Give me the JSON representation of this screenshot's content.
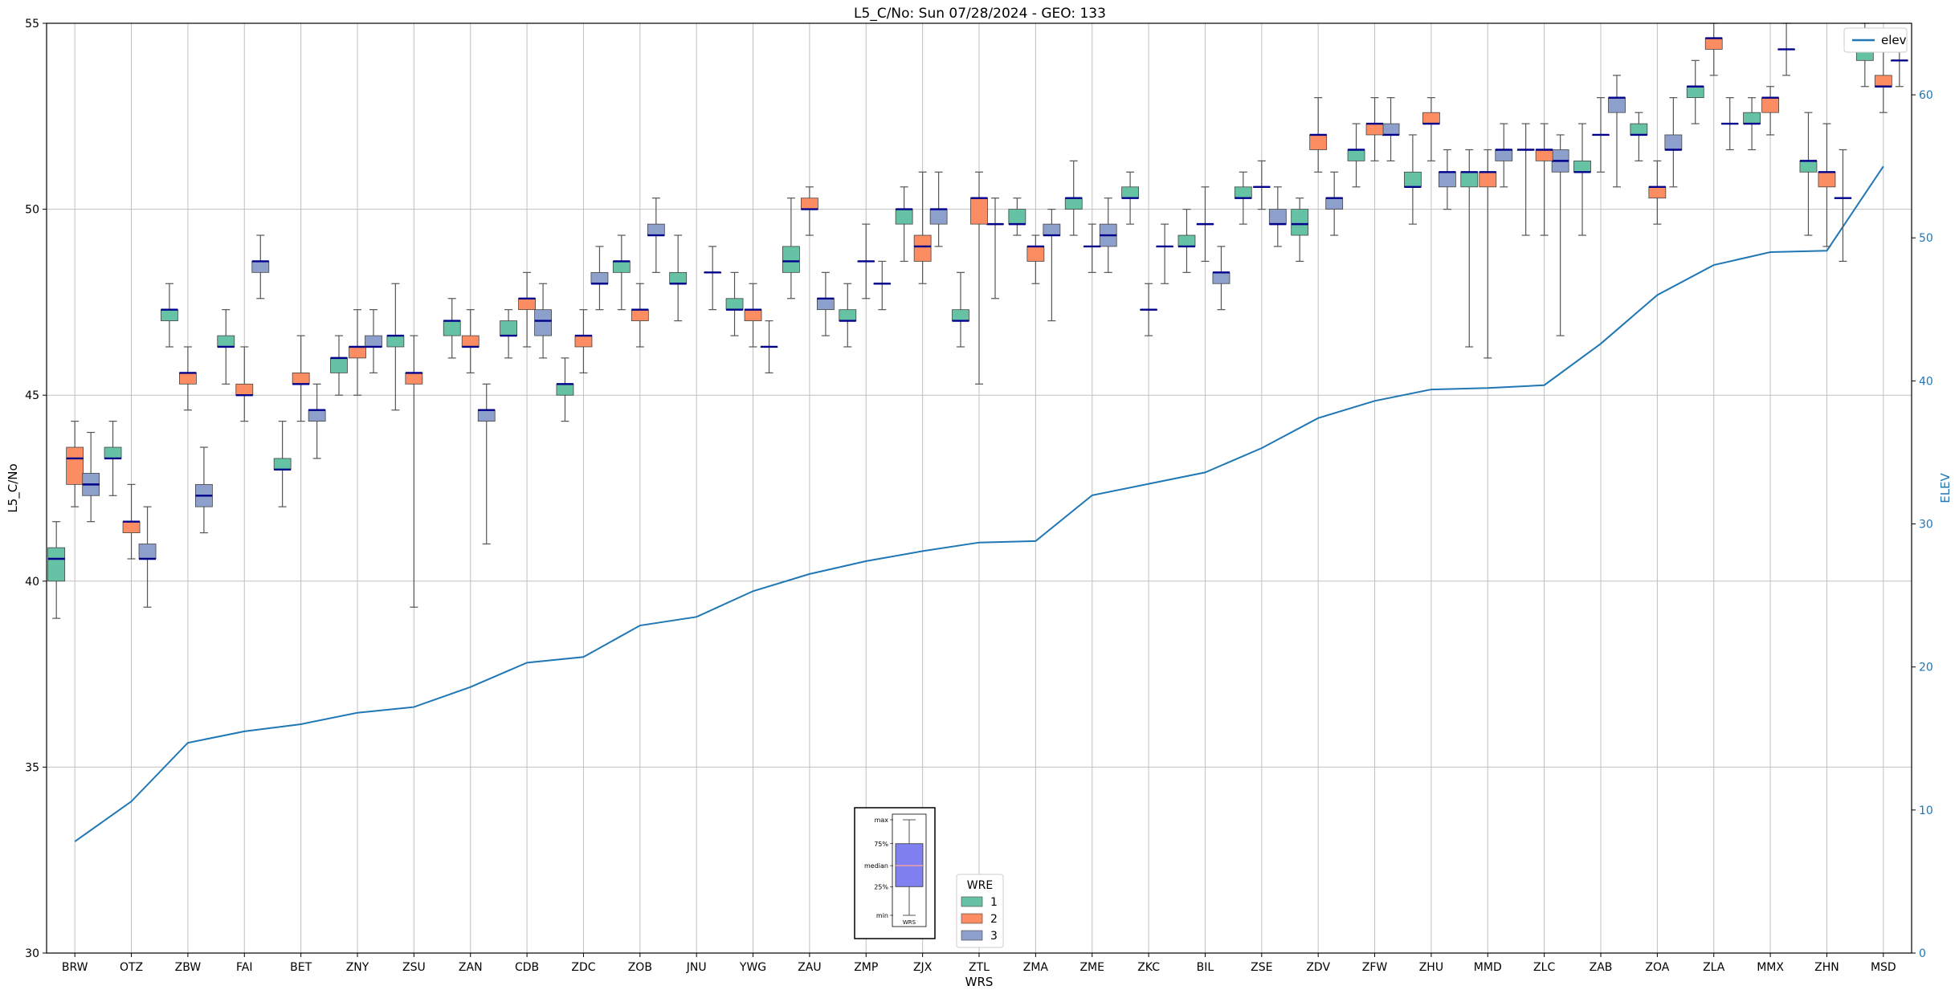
{
  "chart_data": {
    "type": "box",
    "title": "L5_C/No: Sun 07/28/2024 - GEO: 133",
    "xlabel": "WRS",
    "ylabel": "L5_C/No",
    "y2label": "ELEV",
    "ylim": [
      30,
      55
    ],
    "y2lim": [
      0,
      65
    ],
    "yticks": [
      30,
      35,
      40,
      45,
      50,
      55
    ],
    "y2ticks": [
      0,
      10,
      20,
      30,
      40,
      50,
      60
    ],
    "grid": true,
    "categories": [
      "BRW",
      "OTZ",
      "ZBW",
      "FAI",
      "BET",
      "ZNY",
      "ZSU",
      "ZAN",
      "CDB",
      "ZDC",
      "ZOB",
      "JNU",
      "YWG",
      "ZAU",
      "ZMP",
      "ZJX",
      "ZTL",
      "ZMA",
      "ZME",
      "ZKC",
      "BIL",
      "ZSE",
      "ZDV",
      "ZFW",
      "ZHU",
      "MMD",
      "ZLC",
      "ZAB",
      "ZOA",
      "ZLA",
      "MMX",
      "ZHN",
      "MSD"
    ],
    "colors": {
      "1": "#66c2a5",
      "2": "#fc8d62",
      "3": "#8da0cb",
      "median": "#00008b",
      "elev": "#1f77b4",
      "whisker": "#555555",
      "grid": "#c0c0c0"
    },
    "legend_title": "WRE",
    "legend_labels": [
      "1",
      "2",
      "3"
    ],
    "elev_legend_label": "elev",
    "legend_positions": {
      "wre": "bottom-center",
      "elev": "top-right"
    },
    "boxes": [
      {
        "station": "BRW",
        "wre": "1",
        "min": 39.0,
        "q1": 40.0,
        "median": 40.6,
        "q3": 40.9,
        "max": 41.6
      },
      {
        "station": "BRW",
        "wre": "2",
        "min": 42.0,
        "q1": 42.6,
        "median": 43.3,
        "q3": 43.6,
        "max": 44.3
      },
      {
        "station": "BRW",
        "wre": "3",
        "min": 41.6,
        "q1": 42.3,
        "median": 42.6,
        "q3": 42.9,
        "max": 44.0
      },
      {
        "station": "OTZ",
        "wre": "1",
        "min": 42.3,
        "q1": 43.3,
        "median": 43.3,
        "q3": 43.6,
        "max": 44.3
      },
      {
        "station": "OTZ",
        "wre": "2",
        "min": 40.6,
        "q1": 41.3,
        "median": 41.6,
        "q3": 41.6,
        "max": 42.6
      },
      {
        "station": "OTZ",
        "wre": "3",
        "min": 39.3,
        "q1": 40.6,
        "median": 40.6,
        "q3": 41.0,
        "max": 42.0
      },
      {
        "station": "ZBW",
        "wre": "1",
        "min": 46.3,
        "q1": 47.0,
        "median": 47.3,
        "q3": 47.3,
        "max": 48.0
      },
      {
        "station": "ZBW",
        "wre": "2",
        "min": 44.6,
        "q1": 45.3,
        "median": 45.6,
        "q3": 45.6,
        "max": 46.3
      },
      {
        "station": "ZBW",
        "wre": "3",
        "min": 41.3,
        "q1": 42.0,
        "median": 42.3,
        "q3": 42.6,
        "max": 43.6
      },
      {
        "station": "FAI",
        "wre": "1",
        "min": 45.3,
        "q1": 46.3,
        "median": 46.3,
        "q3": 46.6,
        "max": 47.3
      },
      {
        "station": "FAI",
        "wre": "2",
        "min": 44.3,
        "q1": 45.0,
        "median": 45.0,
        "q3": 45.3,
        "max": 46.3
      },
      {
        "station": "FAI",
        "wre": "3",
        "min": 47.6,
        "q1": 48.3,
        "median": 48.6,
        "q3": 48.6,
        "max": 49.3
      },
      {
        "station": "BET",
        "wre": "1",
        "min": 42.0,
        "q1": 43.0,
        "median": 43.0,
        "q3": 43.3,
        "max": 44.3
      },
      {
        "station": "BET",
        "wre": "2",
        "min": 44.3,
        "q1": 45.3,
        "median": 45.3,
        "q3": 45.6,
        "max": 46.6
      },
      {
        "station": "BET",
        "wre": "3",
        "min": 43.3,
        "q1": 44.3,
        "median": 44.6,
        "q3": 44.6,
        "max": 45.3
      },
      {
        "station": "ZNY",
        "wre": "1",
        "min": 45.0,
        "q1": 45.6,
        "median": 46.0,
        "q3": 46.0,
        "max": 46.6
      },
      {
        "station": "ZNY",
        "wre": "2",
        "min": 45.0,
        "q1": 46.0,
        "median": 46.3,
        "q3": 46.3,
        "max": 47.3
      },
      {
        "station": "ZNY",
        "wre": "3",
        "min": 45.6,
        "q1": 46.3,
        "median": 46.3,
        "q3": 46.6,
        "max": 47.3
      },
      {
        "station": "ZSU",
        "wre": "1",
        "min": 44.6,
        "q1": 46.3,
        "median": 46.6,
        "q3": 46.6,
        "max": 48.0
      },
      {
        "station": "ZSU",
        "wre": "2",
        "min": 39.3,
        "q1": 45.3,
        "median": 45.6,
        "q3": 45.6,
        "max": 46.6
      },
      {
        "station": "ZAN",
        "wre": "1",
        "min": 46.0,
        "q1": 46.6,
        "median": 47.0,
        "q3": 47.0,
        "max": 47.6
      },
      {
        "station": "ZAN",
        "wre": "2",
        "min": 45.6,
        "q1": 46.3,
        "median": 46.3,
        "q3": 46.6,
        "max": 47.3
      },
      {
        "station": "ZAN",
        "wre": "3",
        "min": 41.0,
        "q1": 44.3,
        "median": 44.6,
        "q3": 44.6,
        "max": 45.3
      },
      {
        "station": "CDB",
        "wre": "1",
        "min": 46.0,
        "q1": 46.6,
        "median": 46.6,
        "q3": 47.0,
        "max": 47.3
      },
      {
        "station": "CDB",
        "wre": "2",
        "min": 46.3,
        "q1": 47.3,
        "median": 47.6,
        "q3": 47.6,
        "max": 48.3
      },
      {
        "station": "CDB",
        "wre": "3",
        "min": 46.0,
        "q1": 46.6,
        "median": 47.0,
        "q3": 47.3,
        "max": 48.0
      },
      {
        "station": "ZDC",
        "wre": "1",
        "min": 44.3,
        "q1": 45.0,
        "median": 45.3,
        "q3": 45.3,
        "max": 46.0
      },
      {
        "station": "ZDC",
        "wre": "2",
        "min": 45.6,
        "q1": 46.3,
        "median": 46.6,
        "q3": 46.6,
        "max": 47.3
      },
      {
        "station": "ZDC",
        "wre": "3",
        "min": 47.3,
        "q1": 48.0,
        "median": 48.0,
        "q3": 48.3,
        "max": 49.0
      },
      {
        "station": "ZOB",
        "wre": "1",
        "min": 47.3,
        "q1": 48.3,
        "median": 48.6,
        "q3": 48.6,
        "max": 49.3
      },
      {
        "station": "ZOB",
        "wre": "2",
        "min": 46.3,
        "q1": 47.0,
        "median": 47.3,
        "q3": 47.3,
        "max": 48.0
      },
      {
        "station": "ZOB",
        "wre": "3",
        "min": 48.3,
        "q1": 49.3,
        "median": 49.3,
        "q3": 49.6,
        "max": 50.3
      },
      {
        "station": "JNU",
        "wre": "1",
        "min": 47.0,
        "q1": 48.0,
        "median": 48.0,
        "q3": 48.3,
        "max": 49.3
      },
      {
        "station": "JNU",
        "wre": "3",
        "min": 47.3,
        "q1": 48.3,
        "median": 48.3,
        "q3": 48.3,
        "max": 49.0
      },
      {
        "station": "YWG",
        "wre": "3",
        "min": 45.6,
        "q1": 46.3,
        "median": 46.3,
        "q3": 46.3,
        "max": 47.0
      },
      {
        "station": "YWG",
        "wre": "1",
        "min": 46.6,
        "q1": 47.3,
        "median": 47.3,
        "q3": 47.6,
        "max": 48.3
      },
      {
        "station": "YWG",
        "wre": "2",
        "min": 46.3,
        "q1": 47.0,
        "median": 47.3,
        "q3": 47.3,
        "max": 48.0
      },
      {
        "station": "ZAU",
        "wre": "3",
        "min": 46.6,
        "q1": 47.3,
        "median": 47.6,
        "q3": 47.6,
        "max": 48.3
      },
      {
        "station": "ZAU",
        "wre": "1",
        "min": 47.6,
        "q1": 48.3,
        "median": 48.6,
        "q3": 49.0,
        "max": 50.3
      },
      {
        "station": "ZAU",
        "wre": "2",
        "min": 49.3,
        "q1": 50.0,
        "median": 50.0,
        "q3": 50.3,
        "max": 50.6
      },
      {
        "station": "ZMP",
        "wre": "3",
        "min": 47.3,
        "q1": 48.0,
        "median": 48.0,
        "q3": 48.0,
        "max": 48.6
      },
      {
        "station": "ZMP",
        "wre": "1",
        "min": 46.3,
        "q1": 47.0,
        "median": 47.0,
        "q3": 47.3,
        "max": 48.0
      },
      {
        "station": "ZMP",
        "wre": "2",
        "min": 47.6,
        "q1": 48.6,
        "median": 48.6,
        "q3": 48.6,
        "max": 49.6
      },
      {
        "station": "ZJX",
        "wre": "3",
        "min": 49.0,
        "q1": 49.6,
        "median": 50.0,
        "q3": 50.0,
        "max": 51.0
      },
      {
        "station": "ZJX",
        "wre": "1",
        "min": 48.6,
        "q1": 49.6,
        "median": 50.0,
        "q3": 50.0,
        "max": 50.6
      },
      {
        "station": "ZJX",
        "wre": "2",
        "min": 48.0,
        "q1": 48.6,
        "median": 49.0,
        "q3": 49.3,
        "max": 51.0
      },
      {
        "station": "ZTL",
        "wre": "3",
        "min": 47.6,
        "q1": 49.6,
        "median": 49.6,
        "q3": 49.6,
        "max": 50.3
      },
      {
        "station": "ZTL",
        "wre": "1",
        "min": 46.3,
        "q1": 47.0,
        "median": 47.0,
        "q3": 47.3,
        "max": 48.3
      },
      {
        "station": "ZTL",
        "wre": "2",
        "min": 45.3,
        "q1": 49.6,
        "median": 50.3,
        "q3": 50.3,
        "max": 51.0
      },
      {
        "station": "ZMA",
        "wre": "3",
        "min": 47.0,
        "q1": 49.3,
        "median": 49.3,
        "q3": 49.6,
        "max": 50.0
      },
      {
        "station": "ZMA",
        "wre": "1",
        "min": 49.3,
        "q1": 49.6,
        "median": 49.6,
        "q3": 50.0,
        "max": 50.3
      },
      {
        "station": "ZMA",
        "wre": "2",
        "min": 48.0,
        "q1": 48.6,
        "median": 49.0,
        "q3": 49.0,
        "max": 49.3
      },
      {
        "station": "ZME",
        "wre": "3",
        "min": 48.3,
        "q1": 49.0,
        "median": 49.3,
        "q3": 49.6,
        "max": 50.3
      },
      {
        "station": "ZME",
        "wre": "1",
        "min": 49.3,
        "q1": 50.0,
        "median": 50.3,
        "q3": 50.3,
        "max": 51.3
      },
      {
        "station": "ZME",
        "wre": "2",
        "min": 48.3,
        "q1": 49.0,
        "median": 49.0,
        "q3": 49.0,
        "max": 49.6
      },
      {
        "station": "ZKC",
        "wre": "3",
        "min": 48.0,
        "q1": 49.0,
        "median": 49.0,
        "q3": 49.0,
        "max": 49.6
      },
      {
        "station": "ZKC",
        "wre": "1",
        "min": 49.6,
        "q1": 50.3,
        "median": 50.3,
        "q3": 50.6,
        "max": 51.0
      },
      {
        "station": "ZKC",
        "wre": "2",
        "min": 46.6,
        "q1": 47.3,
        "median": 47.3,
        "q3": 47.3,
        "max": 48.0
      },
      {
        "station": "BIL",
        "wre": "3",
        "min": 47.3,
        "q1": 48.0,
        "median": 48.3,
        "q3": 48.3,
        "max": 49.0
      },
      {
        "station": "BIL",
        "wre": "1",
        "min": 48.3,
        "q1": 49.0,
        "median": 49.0,
        "q3": 49.3,
        "max": 50.0
      },
      {
        "station": "BIL",
        "wre": "2",
        "min": 48.6,
        "q1": 49.6,
        "median": 49.6,
        "q3": 49.6,
        "max": 50.6
      },
      {
        "station": "ZSE",
        "wre": "3",
        "min": 49.0,
        "q1": 49.6,
        "median": 49.6,
        "q3": 50.0,
        "max": 50.6
      },
      {
        "station": "ZSE",
        "wre": "1",
        "min": 49.6,
        "q1": 50.3,
        "median": 50.3,
        "q3": 50.6,
        "max": 51.0
      },
      {
        "station": "ZSE",
        "wre": "2",
        "min": 50.0,
        "q1": 50.6,
        "median": 50.6,
        "q3": 50.6,
        "max": 51.3
      },
      {
        "station": "ZDV",
        "wre": "3",
        "min": 49.3,
        "q1": 50.0,
        "median": 50.3,
        "q3": 50.3,
        "max": 51.0
      },
      {
        "station": "ZDV",
        "wre": "1",
        "min": 48.6,
        "q1": 49.3,
        "median": 49.6,
        "q3": 50.0,
        "max": 50.3
      },
      {
        "station": "ZDV",
        "wre": "2",
        "min": 51.0,
        "q1": 51.6,
        "median": 52.0,
        "q3": 52.0,
        "max": 53.0
      },
      {
        "station": "ZFW",
        "wre": "3",
        "min": 51.3,
        "q1": 52.0,
        "median": 52.0,
        "q3": 52.3,
        "max": 53.0
      },
      {
        "station": "ZFW",
        "wre": "1",
        "min": 50.6,
        "q1": 51.3,
        "median": 51.6,
        "q3": 51.6,
        "max": 52.3
      },
      {
        "station": "ZFW",
        "wre": "2",
        "min": 51.3,
        "q1": 52.0,
        "median": 52.3,
        "q3": 52.3,
        "max": 53.0
      },
      {
        "station": "ZHU",
        "wre": "3",
        "min": 50.0,
        "q1": 50.6,
        "median": 51.0,
        "q3": 51.0,
        "max": 51.6
      },
      {
        "station": "ZHU",
        "wre": "1",
        "min": 49.6,
        "q1": 50.6,
        "median": 50.6,
        "q3": 51.0,
        "max": 52.0
      },
      {
        "station": "ZHU",
        "wre": "2",
        "min": 51.3,
        "q1": 52.3,
        "median": 52.3,
        "q3": 52.6,
        "max": 53.0
      },
      {
        "station": "MMD",
        "wre": "3",
        "min": 50.6,
        "q1": 51.3,
        "median": 51.6,
        "q3": 51.6,
        "max": 52.3
      },
      {
        "station": "MMD",
        "wre": "1",
        "min": 46.3,
        "q1": 50.6,
        "median": 51.0,
        "q3": 51.0,
        "max": 51.6
      },
      {
        "station": "MMD",
        "wre": "2",
        "min": 46.0,
        "q1": 50.6,
        "median": 51.0,
        "q3": 51.0,
        "max": 51.6
      },
      {
        "station": "ZLC",
        "wre": "3",
        "min": 46.6,
        "q1": 51.0,
        "median": 51.3,
        "q3": 51.6,
        "max": 52.0
      },
      {
        "station": "ZLC",
        "wre": "1",
        "min": 49.3,
        "q1": 51.6,
        "median": 51.6,
        "q3": 51.6,
        "max": 52.3
      },
      {
        "station": "ZLC",
        "wre": "2",
        "min": 49.3,
        "q1": 51.3,
        "median": 51.6,
        "q3": 51.6,
        "max": 52.3
      },
      {
        "station": "ZAB",
        "wre": "3",
        "min": 50.6,
        "q1": 52.6,
        "median": 53.0,
        "q3": 53.0,
        "max": 53.6
      },
      {
        "station": "ZAB",
        "wre": "1",
        "min": 49.3,
        "q1": 51.0,
        "median": 51.0,
        "q3": 51.3,
        "max": 52.3
      },
      {
        "station": "ZAB",
        "wre": "2",
        "min": 51.0,
        "q1": 52.0,
        "median": 52.0,
        "q3": 52.0,
        "max": 53.0
      },
      {
        "station": "ZOA",
        "wre": "3",
        "min": 50.6,
        "q1": 51.6,
        "median": 51.6,
        "q3": 52.0,
        "max": 53.0
      },
      {
        "station": "ZOA",
        "wre": "1",
        "min": 51.3,
        "q1": 52.0,
        "median": 52.0,
        "q3": 52.3,
        "max": 52.6
      },
      {
        "station": "ZOA",
        "wre": "2",
        "min": 49.6,
        "q1": 50.3,
        "median": 50.6,
        "q3": 50.6,
        "max": 51.3
      },
      {
        "station": "ZLA",
        "wre": "3",
        "min": 51.6,
        "q1": 52.3,
        "median": 52.3,
        "q3": 52.3,
        "max": 53.0
      },
      {
        "station": "ZLA",
        "wre": "1",
        "min": 52.3,
        "q1": 53.0,
        "median": 53.3,
        "q3": 53.3,
        "max": 54.0
      },
      {
        "station": "ZLA",
        "wre": "2",
        "min": 53.6,
        "q1": 54.3,
        "median": 54.6,
        "q3": 54.6,
        "max": 55.0
      },
      {
        "station": "MMX",
        "wre": "3",
        "min": 53.6,
        "q1": 54.3,
        "median": 54.3,
        "q3": 54.3,
        "max": 55.0
      },
      {
        "station": "MMX",
        "wre": "1",
        "min": 51.6,
        "q1": 52.3,
        "median": 52.3,
        "q3": 52.6,
        "max": 53.0
      },
      {
        "station": "MMX",
        "wre": "2",
        "min": 52.0,
        "q1": 52.6,
        "median": 53.0,
        "q3": 53.0,
        "max": 53.3
      },
      {
        "station": "ZHN",
        "wre": "3",
        "min": 48.6,
        "q1": 50.3,
        "median": 50.3,
        "q3": 50.3,
        "max": 51.6
      },
      {
        "station": "ZHN",
        "wre": "1",
        "min": 49.3,
        "q1": 51.0,
        "median": 51.3,
        "q3": 51.3,
        "max": 52.6
      },
      {
        "station": "ZHN",
        "wre": "2",
        "min": 49.0,
        "q1": 50.6,
        "median": 51.0,
        "q3": 51.0,
        "max": 52.3
      },
      {
        "station": "MSD",
        "wre": "3",
        "min": 53.3,
        "q1": 54.0,
        "median": 54.0,
        "q3": 54.0,
        "max": 54.6
      },
      {
        "station": "MSD",
        "wre": "1",
        "min": 53.3,
        "q1": 54.0,
        "median": 54.3,
        "q3": 54.3,
        "max": 55.0
      },
      {
        "station": "MSD",
        "wre": "2",
        "min": 52.6,
        "q1": 53.3,
        "median": 53.3,
        "q3": 53.6,
        "max": 54.3
      }
    ],
    "elev": [
      7.8,
      10.6,
      14.7,
      15.5,
      16.0,
      16.8,
      17.2,
      18.6,
      20.3,
      20.7,
      22.9,
      23.5,
      25.3,
      26.5,
      27.4,
      28.1,
      28.7,
      28.8,
      32.0,
      32.8,
      33.6,
      35.3,
      37.4,
      38.6,
      39.4,
      39.5,
      39.7,
      42.6,
      46.0,
      48.1,
      49.0,
      49.1,
      55.0
    ],
    "inset": {
      "labels": [
        "max",
        "75%",
        "median",
        "25%",
        "min"
      ],
      "xlabel": "WRS",
      "min": 0,
      "q1": 0.3,
      "median": 0.52,
      "q3": 0.75,
      "max": 1
    }
  }
}
